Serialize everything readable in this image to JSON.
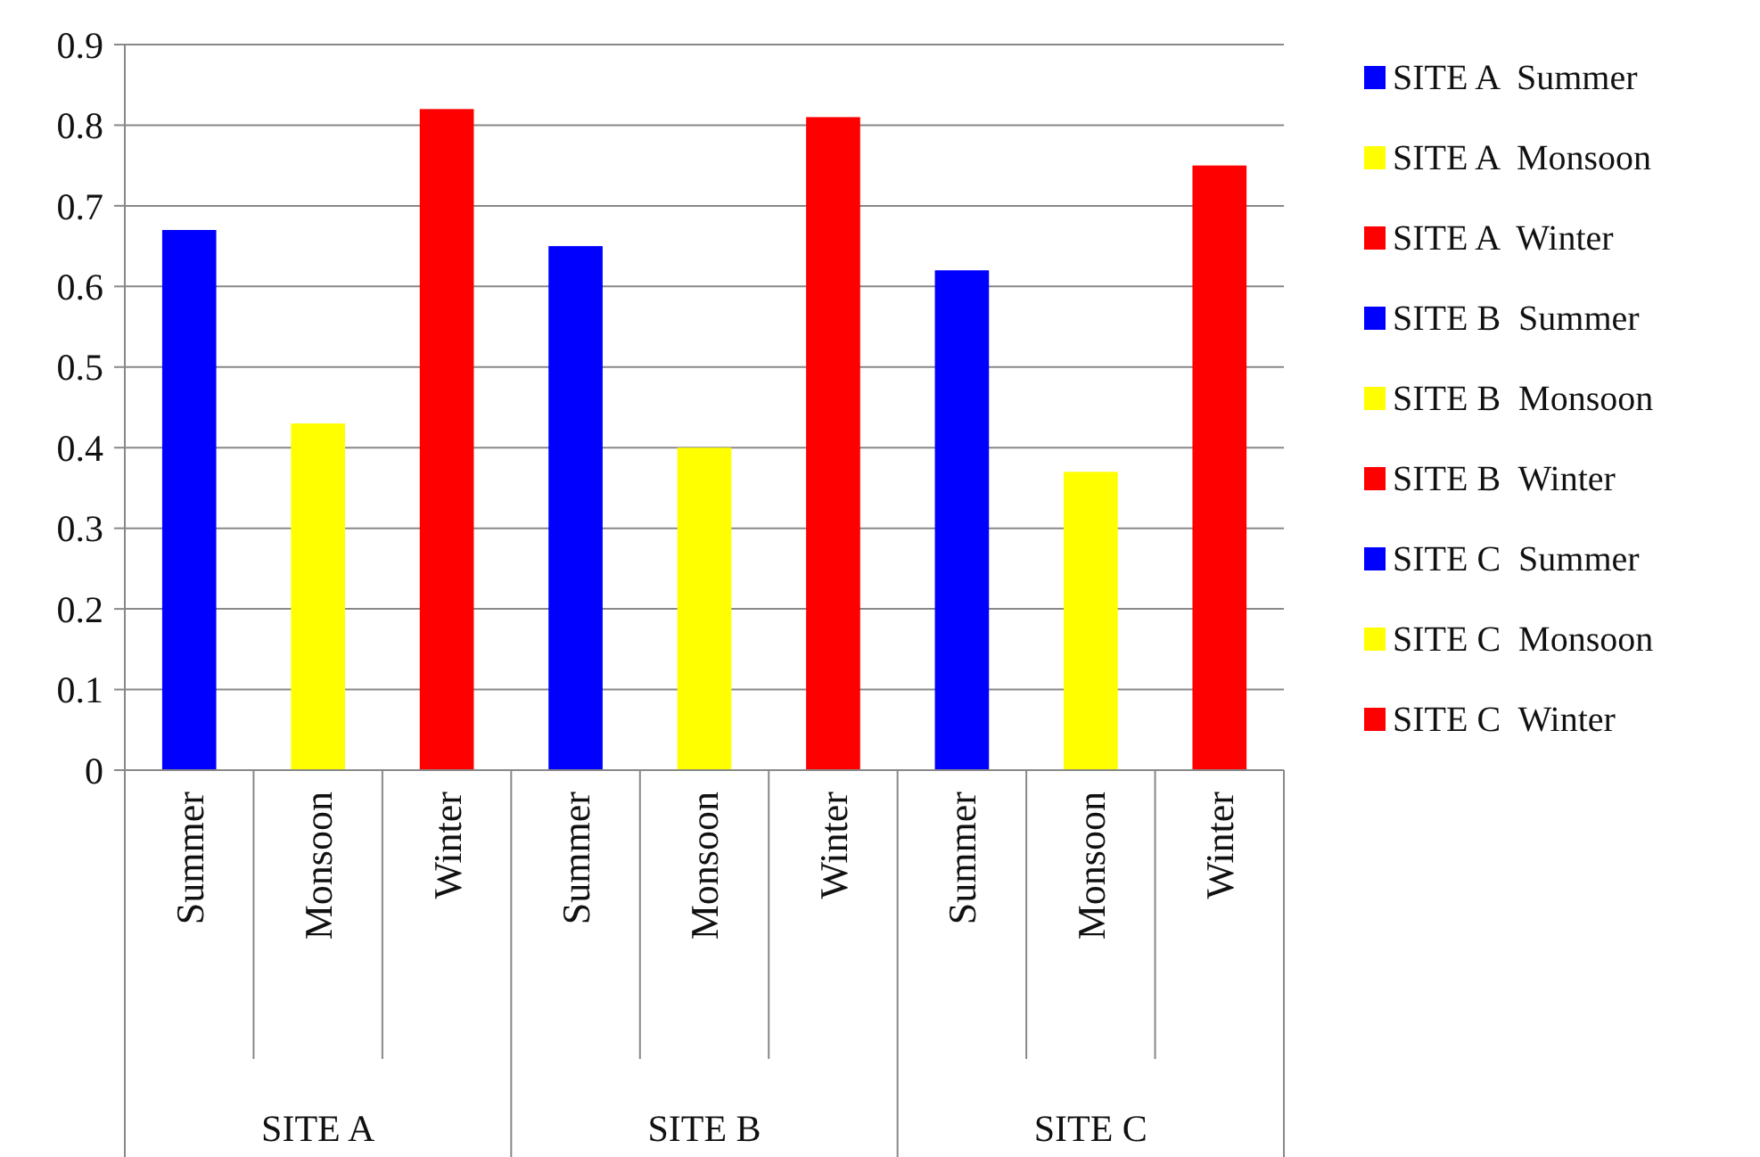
{
  "chart_data": {
    "type": "bar",
    "categories": [
      "Summer",
      "Monsoon",
      "Winter",
      "Summer",
      "Monsoon",
      "Winter",
      "Summer",
      "Monsoon",
      "Winter"
    ],
    "annotations": [
      "SITE A",
      "SITE B",
      "SITE C"
    ],
    "series": [
      {
        "name": "SITE A  Summer",
        "color": "#0000ff",
        "values": [
          0.67,
          null,
          null,
          null,
          null,
          null,
          null,
          null,
          null
        ]
      },
      {
        "name": "SITE A  Monsoon",
        "color": "#ffff00",
        "values": [
          null,
          0.43,
          null,
          null,
          null,
          null,
          null,
          null,
          null
        ]
      },
      {
        "name": "SITE A  Winter",
        "color": "#ff0000",
        "values": [
          null,
          null,
          0.82,
          null,
          null,
          null,
          null,
          null,
          null
        ]
      },
      {
        "name": "SITE B  Summer",
        "color": "#0000ff",
        "values": [
          null,
          null,
          null,
          0.65,
          null,
          null,
          null,
          null,
          null
        ]
      },
      {
        "name": "SITE B  Monsoon",
        "color": "#ffff00",
        "values": [
          null,
          null,
          null,
          null,
          0.4,
          null,
          null,
          null,
          null
        ]
      },
      {
        "name": "SITE B  Winter",
        "color": "#ff0000",
        "values": [
          null,
          null,
          null,
          null,
          null,
          0.81,
          null,
          null,
          null
        ]
      },
      {
        "name": "SITE C  Summer",
        "color": "#0000ff",
        "values": [
          null,
          null,
          null,
          null,
          null,
          null,
          0.62,
          null,
          null
        ]
      },
      {
        "name": "SITE C  Monsoon",
        "color": "#ffff00",
        "values": [
          null,
          null,
          null,
          null,
          null,
          null,
          null,
          0.37,
          null
        ]
      },
      {
        "name": "SITE C  Winter",
        "color": "#ff0000",
        "values": [
          null,
          null,
          null,
          null,
          null,
          null,
          null,
          null,
          0.75
        ]
      }
    ],
    "ylim": [
      0,
      0.9
    ],
    "yticks": [
      0,
      0.1,
      0.2,
      0.3,
      0.4,
      0.5,
      0.6,
      0.7,
      0.8,
      0.9
    ],
    "grid": "y",
    "legend": "right"
  }
}
